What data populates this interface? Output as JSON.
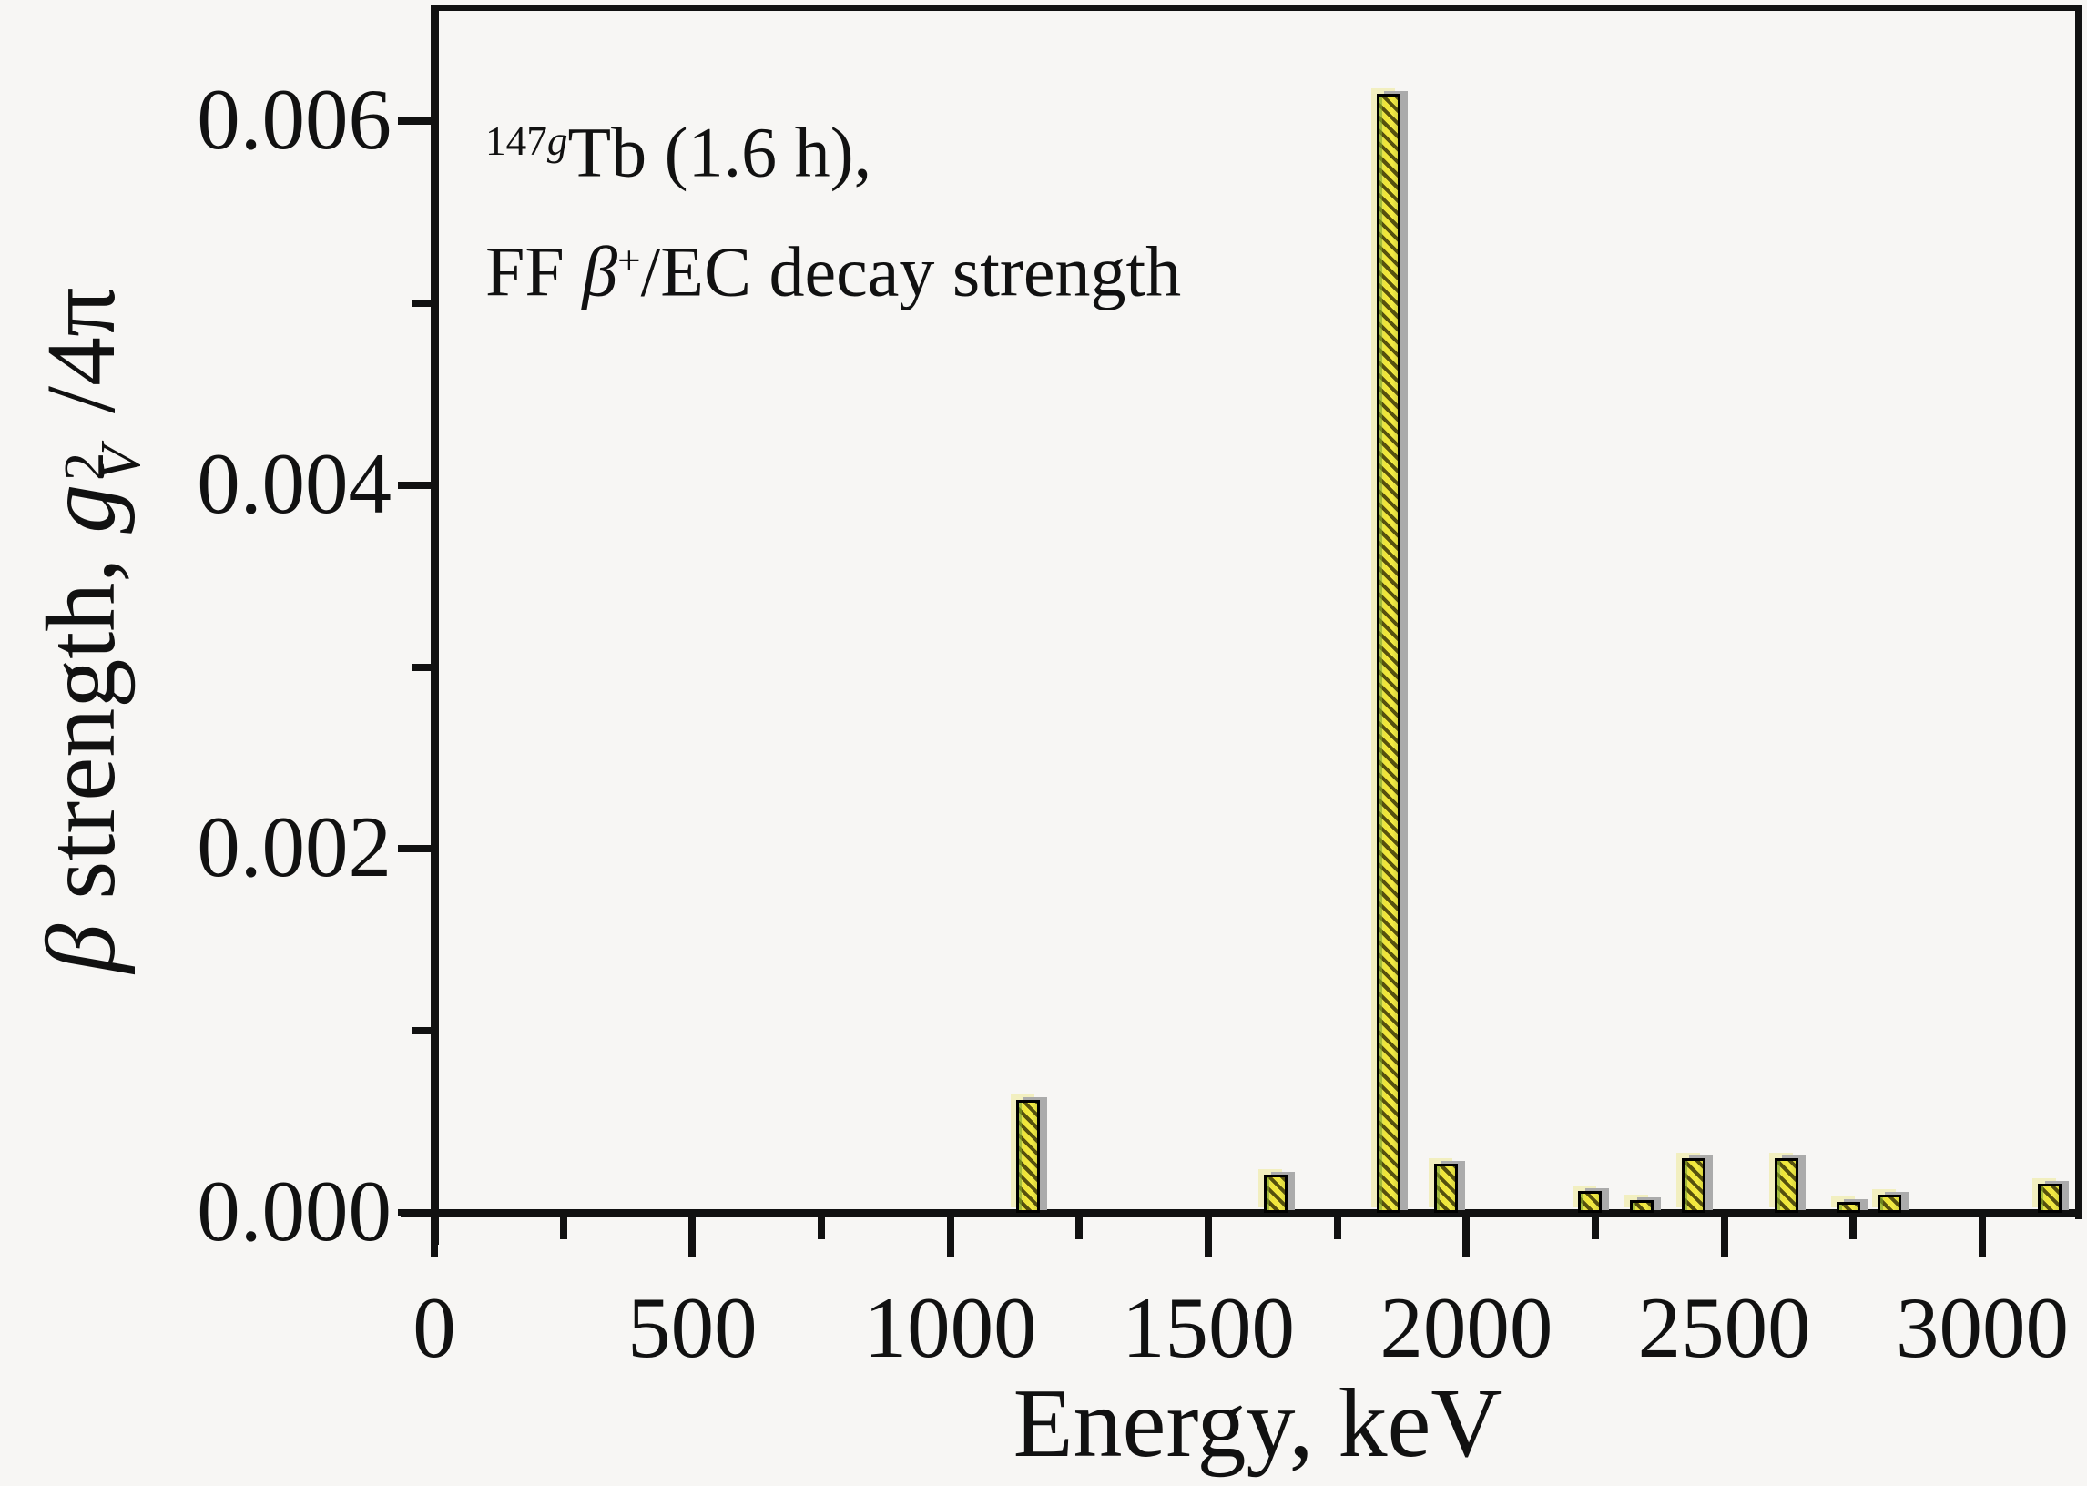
{
  "chart_data": {
    "type": "bar",
    "title_line1": {
      "mass_sup": "147",
      "isomer_sup": "g",
      "element": "Tb",
      "tail": " (1.6 h),"
    },
    "title_line2": {
      "prefix": "FF ",
      "beta": "β",
      "charge_sup": "+",
      "tail": "/EC decay strength"
    },
    "xlabel": "Energy, keV",
    "ylabel": {
      "beta": "β",
      "text": " strength, ",
      "symbol": "g",
      "sub": "V",
      "sup": "2",
      "tail": "/4π"
    },
    "x_axis": {
      "min": 0,
      "max": 3190,
      "major_ticks": [
        0,
        500,
        1000,
        1500,
        2000,
        2500,
        3000
      ],
      "tick_labels": [
        "0",
        "500",
        "1000",
        "1500",
        "2000",
        "2500",
        "3000"
      ],
      "minor_ticks": [
        250,
        750,
        1250,
        1750,
        2250,
        2750
      ]
    },
    "y_axis": {
      "min": 0,
      "max": 0.00664,
      "major_ticks": [
        0,
        0.002,
        0.004,
        0.006
      ],
      "tick_labels": [
        "0.000",
        "0.002",
        "0.004",
        "0.006"
      ],
      "minor_ticks": [
        0.001,
        0.003,
        0.005
      ]
    },
    "bar_width_keV": 46,
    "bars": [
      {
        "energy_keV": 1150,
        "strength": 0.00062
      },
      {
        "energy_keV": 1630,
        "strength": 0.00021
      },
      {
        "energy_keV": 1850,
        "strength": 0.00615
      },
      {
        "energy_keV": 1960,
        "strength": 0.00027
      },
      {
        "energy_keV": 2240,
        "strength": 0.00012
      },
      {
        "energy_keV": 2340,
        "strength": 7e-05
      },
      {
        "energy_keV": 2440,
        "strength": 0.0003
      },
      {
        "energy_keV": 2620,
        "strength": 0.0003
      },
      {
        "energy_keV": 2740,
        "strength": 6e-05
      },
      {
        "energy_keV": 2820,
        "strength": 0.0001
      },
      {
        "energy_keV": 3130,
        "strength": 0.00016
      }
    ],
    "colors": {
      "background": "#f7f6f4",
      "axis": "#111111",
      "bar_fill": "#efe438",
      "bar_hatch": "#3b3605",
      "bar_border": "#000000",
      "bar_shadow": "#ababab",
      "bar_ghost": "#f2efc0",
      "bar_green_edge": "#82a528"
    }
  }
}
